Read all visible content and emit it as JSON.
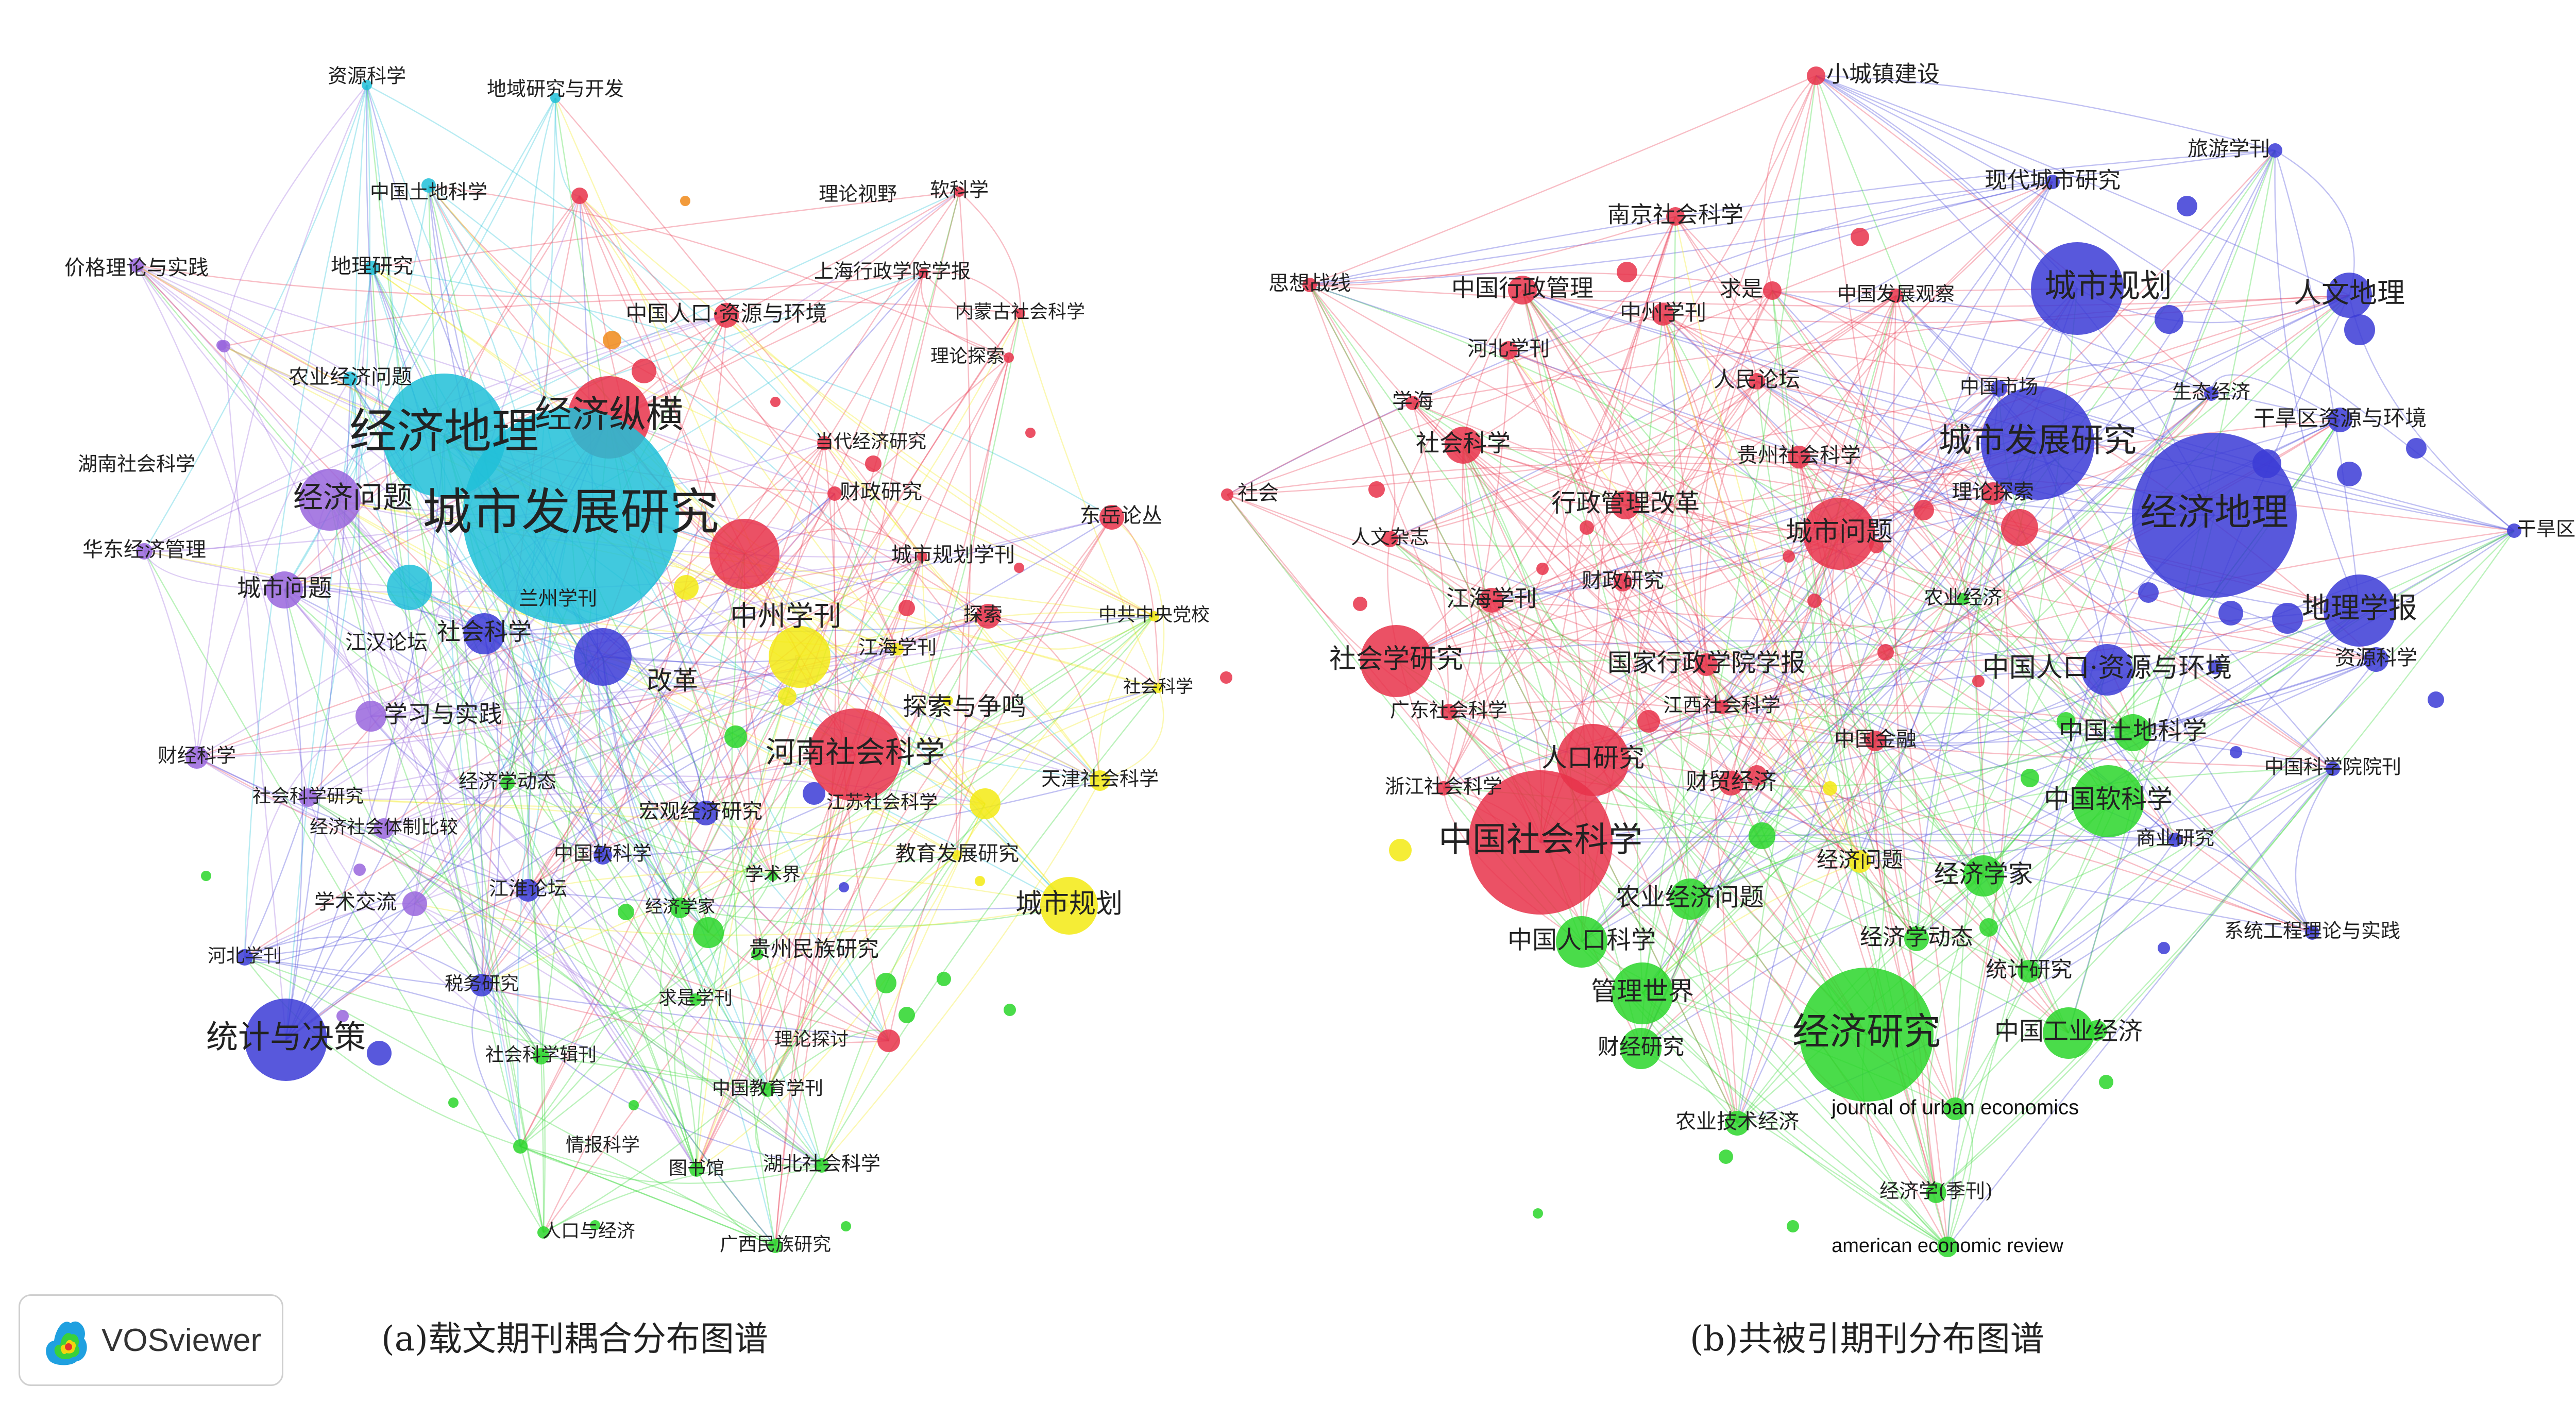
{
  "colors": {
    "red": "#e8334a",
    "blue": "#3b3bd6",
    "green": "#2ad62a",
    "yellow": "#f3ea13",
    "cyan": "#20c0d8",
    "purple": "#9966dd",
    "orange": "#f08a1a",
    "label": "#222222"
  },
  "logo": {
    "text": "VOSviewer",
    "icon": "vosviewer-logo-icon"
  },
  "captions": {
    "a": "(a)载文期刊耦合分布图谱",
    "b": "(b)共被引期刊分布图谱"
  },
  "network_a": {
    "labels": [
      "资源科学",
      "地域研究与开发",
      "中国土地科学",
      "理论视野",
      "软科学",
      "价格理论与实践",
      "地理研究",
      "上海行政学院学报",
      "中国人口·资源与环境",
      "内蒙古社会科学",
      "理论探索",
      "农业经济问题",
      "经济地理",
      "经济纵横",
      "当代经济研究",
      "湖南社会科学",
      "城市发展研究",
      "财政研究",
      "东岳论丛",
      "经济问题",
      "华东经济管理",
      "城市规划学刊",
      "兰州学刊",
      "城市问题",
      "中州学刊",
      "探索",
      "中共中央党校",
      "江汉论坛",
      "社会科学",
      "江海学刊",
      "社会科学",
      "改革",
      "学习与实践",
      "探索与争鸣",
      "河南社会科学",
      "财经科学",
      "经济学动态",
      "天津社会科学",
      "社会科学研究",
      "宏观经济研究",
      "江苏社会科学",
      "经济社会体制比较",
      "教育发展研究",
      "中国软科学",
      "学术界",
      "学术交流",
      "江淮论坛",
      "经济学家",
      "城市规划",
      "贵州民族研究",
      "河北学刊",
      "税务研究",
      "统计与决策",
      "求是学刊",
      "理论探讨",
      "社会科学辑刊",
      "中国教育学刊",
      "情报科学",
      "图书馆",
      "湖北社会科学",
      "人口与经济",
      "广西民族研究"
    ]
  },
  "network_b": {
    "labels": [
      "小城镇建设",
      "旅游学刊",
      "现代城市研究",
      "南京社会科学",
      "思想战线",
      "中国行政管理",
      "中州学刊",
      "求是",
      "中国发展观察",
      "城市规划",
      "人文地理",
      "河北学刊",
      "学海",
      "中国市场",
      "人民论坛",
      "生态经济",
      "干旱区资源与环境",
      "社会科学",
      "贵州社会科学",
      "城市发展研究",
      "社会",
      "理论探索",
      "经济地理",
      "行政管理改革",
      "人文杂志",
      "城市问题",
      "干旱区地理",
      "财政研究",
      "农业经济",
      "江海学刊",
      "地理学报",
      "社会学研究",
      "国家行政学院学报",
      "中国人口·资源与环境",
      "资源科学",
      "广东社会科学",
      "江西社会科学",
      "中国土地科学",
      "中国金融",
      "人口研究",
      "中国科学院院刊",
      "浙江社会科学",
      "财贸经济",
      "中国软科学",
      "商业研究",
      "中国社会科学",
      "经济问题",
      "经济学家",
      "农业经济问题",
      "系统工程理论与实践",
      "经济学动态",
      "中国人口科学",
      "统计研究",
      "管理世界",
      "经济研究",
      "中国工业经济",
      "财经研究",
      "journal of urban economics",
      "农业技术经济",
      "经济学(季刊)",
      "american economic review"
    ]
  }
}
